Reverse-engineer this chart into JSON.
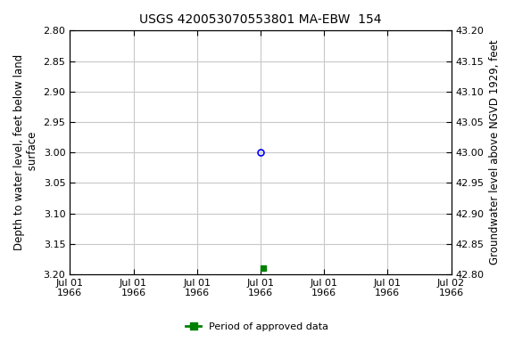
{
  "title": "USGS 420053070553801 MA-EBW  154",
  "ylabel_left": "Depth to water level, feet below land\n surface",
  "ylabel_right": "Groundwater level above NGVD 1929, feet",
  "xlim": [
    0,
    6
  ],
  "ylim_left": [
    3.2,
    2.8
  ],
  "ylim_right": [
    42.8,
    43.2
  ],
  "yticks_left": [
    2.8,
    2.85,
    2.9,
    2.95,
    3.0,
    3.05,
    3.1,
    3.15,
    3.2
  ],
  "yticks_right": [
    43.2,
    43.15,
    43.1,
    43.05,
    43.0,
    42.95,
    42.9,
    42.85,
    42.8
  ],
  "xtick_labels": [
    "Jul 01\n1966",
    "Jul 01\n1966",
    "Jul 01\n1966",
    "Jul 01\n1966",
    "Jul 01\n1966",
    "Jul 01\n1966",
    "Jul 02\n1966"
  ],
  "data_point_x": 3.0,
  "data_point_y": 3.0,
  "data_point_color": "#0000ff",
  "data_point_marker": "o",
  "approved_x": 3.05,
  "approved_y": 3.19,
  "approved_color": "#008000",
  "approved_marker": "s",
  "legend_label": "Period of approved data",
  "legend_color": "#008000",
  "grid_color": "#c8c8c8",
  "background_color": "#ffffff",
  "title_fontsize": 10,
  "axis_label_fontsize": 8.5,
  "tick_fontsize": 8
}
